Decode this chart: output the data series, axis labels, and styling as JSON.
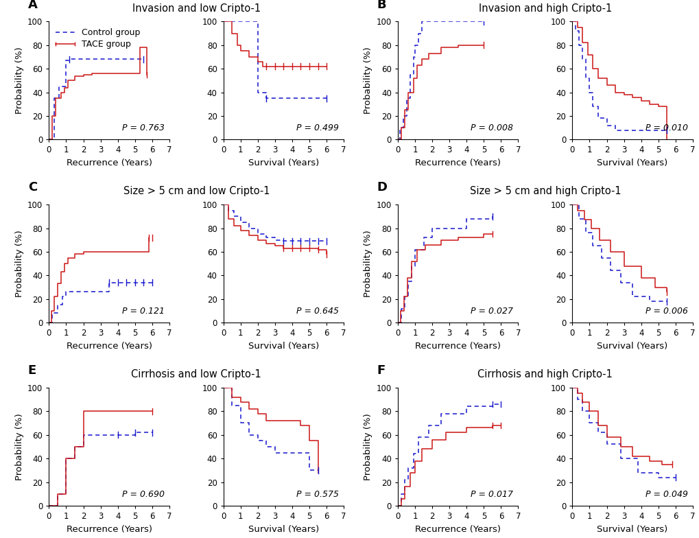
{
  "panels": [
    {
      "label": "A",
      "title": "Invasion and low Cripto-1",
      "show_legend": true,
      "subplots": [
        {
          "xlabel": "Recurrence (Years)",
          "pvalue": "P = 0.763",
          "xlim": [
            0,
            7
          ],
          "ylim": [
            0,
            100
          ],
          "control": {
            "x": [
              0,
              0.3,
              0.6,
              1.0,
              1.2,
              5.5
            ],
            "y": [
              0,
              35,
              45,
              67,
              68,
              68
            ]
          },
          "tace": {
            "x": [
              0,
              0.2,
              0.4,
              0.7,
              0.9,
              1.1,
              1.5,
              2.0,
              2.5,
              5.3,
              5.7
            ],
            "y": [
              0,
              20,
              35,
              40,
              44,
              50,
              54,
              55,
              56,
              78,
              55
            ]
          },
          "ctrl_censor": [
            1.2,
            5.5
          ],
          "tace_censor": [
            5.7
          ]
        },
        {
          "xlabel": "Survival (Years)",
          "pvalue": "P = 0.499",
          "xlim": [
            0,
            7
          ],
          "ylim": [
            0,
            100
          ],
          "control": {
            "x": [
              0,
              1.8,
              2.0,
              2.5,
              6.0
            ],
            "y": [
              100,
              100,
              40,
              35,
              35
            ]
          },
          "tace": {
            "x": [
              0,
              0.5,
              0.8,
              1.0,
              1.5,
              2.0,
              2.3,
              6.0
            ],
            "y": [
              100,
              90,
              80,
              75,
              70,
              66,
              62,
              62
            ]
          },
          "ctrl_censor": [
            2.5,
            6.0
          ],
          "tace_censor": [
            2.5,
            3.0,
            3.5,
            4.0,
            4.5,
            5.0,
            5.5,
            6.0
          ]
        }
      ]
    },
    {
      "label": "B",
      "title": "Invasion and high Cripto-1",
      "show_legend": false,
      "subplots": [
        {
          "xlabel": "Recurrence (Years)",
          "pvalue": "P = 0.008",
          "xlim": [
            0,
            7
          ],
          "ylim": [
            0,
            100
          ],
          "control": {
            "x": [
              0,
              0.1,
              0.3,
              0.5,
              0.7,
              0.9,
              1.0,
              1.2,
              1.4,
              5.0
            ],
            "y": [
              0,
              10,
              20,
              35,
              55,
              70,
              80,
              90,
              100,
              100
            ]
          },
          "tace": {
            "x": [
              0,
              0.2,
              0.4,
              0.6,
              0.9,
              1.1,
              1.4,
              1.8,
              2.5,
              3.5,
              4.3,
              5.0
            ],
            "y": [
              0,
              10,
              25,
              40,
              52,
              63,
              68,
              73,
              78,
              80,
              80,
              80
            ]
          },
          "ctrl_censor": [
            5.0
          ],
          "tace_censor": [
            5.0
          ]
        },
        {
          "xlabel": "Survival (Years)",
          "pvalue": "P = 0.010",
          "xlim": [
            0,
            7
          ],
          "ylim": [
            0,
            100
          ],
          "control": {
            "x": [
              0,
              0.2,
              0.4,
              0.6,
              0.8,
              1.0,
              1.2,
              1.5,
              2.0,
              2.5,
              5.5
            ],
            "y": [
              100,
              92,
              80,
              68,
              52,
              40,
              28,
              18,
              12,
              8,
              8
            ]
          },
          "tace": {
            "x": [
              0,
              0.3,
              0.6,
              0.9,
              1.2,
              1.5,
              2.0,
              2.5,
              3.0,
              3.5,
              4.0,
              4.5,
              5.0,
              5.5
            ],
            "y": [
              100,
              95,
              82,
              72,
              60,
              52,
              46,
              40,
              38,
              36,
              33,
              30,
              28,
              0
            ]
          },
          "ctrl_censor": [
            5.5
          ],
          "tace_censor": []
        }
      ]
    },
    {
      "label": "C",
      "title": "Size > 5 cm and low Cripto-1",
      "show_legend": false,
      "subplots": [
        {
          "xlabel": "Recurrence (Years)",
          "pvalue": "P = 0.121",
          "xlim": [
            0,
            7
          ],
          "ylim": [
            0,
            100
          ],
          "control": {
            "x": [
              0,
              0.2,
              0.5,
              0.8,
              1.0,
              3.0,
              3.5,
              6.0
            ],
            "y": [
              0,
              8,
              15,
              22,
              26,
              26,
              34,
              34
            ]
          },
          "tace": {
            "x": [
              0,
              0.15,
              0.3,
              0.5,
              0.7,
              0.9,
              1.1,
              1.5,
              2.0,
              5.4,
              5.8
            ],
            "y": [
              0,
              10,
              22,
              33,
              43,
              50,
              55,
              58,
              60,
              60,
              72
            ]
          },
          "ctrl_censor": [
            3.5,
            4.0,
            4.5,
            5.0,
            5.5,
            6.0
          ],
          "tace_censor": [
            5.8,
            6.0
          ]
        },
        {
          "xlabel": "Survival (Years)",
          "pvalue": "P = 0.645",
          "xlim": [
            0,
            7
          ],
          "ylim": [
            0,
            100
          ],
          "control": {
            "x": [
              0,
              0.3,
              0.6,
              1.0,
              1.5,
              2.0,
              2.5,
              3.0,
              3.5,
              5.5,
              6.0
            ],
            "y": [
              100,
              95,
              90,
              85,
              80,
              75,
              72,
              70,
              69,
              69,
              69
            ]
          },
          "tace": {
            "x": [
              0,
              0.3,
              0.6,
              1.0,
              1.5,
              2.0,
              2.5,
              3.0,
              3.5,
              5.5,
              6.0
            ],
            "y": [
              100,
              88,
              82,
              78,
              74,
              70,
              67,
              65,
              63,
              62,
              58
            ]
          },
          "ctrl_censor": [
            3.5,
            4.0,
            4.5,
            5.0,
            5.5,
            6.0
          ],
          "tace_censor": [
            3.5,
            4.0,
            4.5,
            5.0,
            5.5,
            6.0
          ]
        }
      ]
    },
    {
      "label": "D",
      "title": "Size > 5 cm and high Cripto-1",
      "show_legend": false,
      "subplots": [
        {
          "xlabel": "Recurrence (Years)",
          "pvalue": "P = 0.027",
          "xlim": [
            0,
            7
          ],
          "ylim": [
            0,
            100
          ],
          "control": {
            "x": [
              0,
              0.2,
              0.4,
              0.6,
              0.8,
              1.0,
              1.5,
              2.0,
              4.0,
              5.5
            ],
            "y": [
              0,
              12,
              22,
              35,
              48,
              62,
              72,
              80,
              88,
              90
            ]
          },
          "tace": {
            "x": [
              0,
              0.15,
              0.35,
              0.55,
              0.8,
              1.1,
              1.6,
              2.5,
              3.5,
              5.0,
              5.5
            ],
            "y": [
              0,
              10,
              22,
              38,
              52,
              62,
              66,
              70,
              72,
              75,
              75
            ]
          },
          "ctrl_censor": [
            5.5
          ],
          "tace_censor": [
            5.5
          ]
        },
        {
          "xlabel": "Survival (Years)",
          "pvalue": "P = 0.006",
          "xlim": [
            0,
            7
          ],
          "ylim": [
            0,
            100
          ],
          "control": {
            "x": [
              0,
              0.4,
              0.8,
              1.2,
              1.7,
              2.2,
              2.8,
              3.5,
              4.5,
              5.5
            ],
            "y": [
              100,
              88,
              76,
              65,
              55,
              44,
              34,
              22,
              18,
              18
            ]
          },
          "tace": {
            "x": [
              0,
              0.3,
              0.7,
              1.1,
              1.6,
              2.2,
              3.0,
              4.0,
              4.8,
              5.5
            ],
            "y": [
              100,
              95,
              87,
              80,
              70,
              60,
              48,
              38,
              30,
              26
            ]
          },
          "ctrl_censor": [
            5.5
          ],
          "tace_censor": [
            5.5
          ]
        }
      ]
    },
    {
      "label": "E",
      "title": "Cirrhosis and low Cripto-1",
      "show_legend": false,
      "subplots": [
        {
          "xlabel": "Recurrence (Years)",
          "pvalue": "P = 0.690",
          "xlim": [
            0,
            7
          ],
          "ylim": [
            0,
            100
          ],
          "control": {
            "x": [
              0,
              0.5,
              1.0,
              1.5,
              2.0,
              4.0,
              5.0,
              6.0
            ],
            "y": [
              0,
              10,
              40,
              50,
              60,
              60,
              62,
              62
            ]
          },
          "tace": {
            "x": [
              0,
              0.5,
              1.0,
              1.5,
              2.0,
              6.0
            ],
            "y": [
              0,
              10,
              40,
              50,
              80,
              80
            ]
          },
          "ctrl_censor": [
            4.0,
            5.0,
            6.0
          ],
          "tace_censor": [
            6.0
          ]
        },
        {
          "xlabel": "Survival (Years)",
          "pvalue": "P = 0.575",
          "xlim": [
            0,
            7
          ],
          "ylim": [
            0,
            100
          ],
          "control": {
            "x": [
              0,
              0.5,
              1.0,
              1.5,
              2.0,
              2.5,
              3.0,
              5.0,
              5.5
            ],
            "y": [
              100,
              85,
              70,
              60,
              55,
              50,
              45,
              30,
              30
            ]
          },
          "tace": {
            "x": [
              0,
              0.5,
              1.0,
              1.5,
              2.0,
              2.5,
              4.5,
              5.0,
              5.5
            ],
            "y": [
              100,
              92,
              88,
              82,
              78,
              72,
              68,
              55,
              28
            ]
          },
          "ctrl_censor": [
            5.5
          ],
          "tace_censor": []
        }
      ]
    },
    {
      "label": "F",
      "title": "Cirrhosis and high Cripto-1",
      "show_legend": false,
      "subplots": [
        {
          "xlabel": "Recurrence (Years)",
          "pvalue": "P = 0.017",
          "xlim": [
            0,
            7
          ],
          "ylim": [
            0,
            100
          ],
          "control": {
            "x": [
              0,
              0.2,
              0.4,
              0.6,
              0.9,
              1.2,
              1.8,
              2.5,
              4.0,
              5.5,
              6.0
            ],
            "y": [
              0,
              10,
              22,
              32,
              44,
              58,
              68,
              78,
              84,
              86,
              86
            ]
          },
          "tace": {
            "x": [
              0,
              0.2,
              0.4,
              0.7,
              1.0,
              1.4,
              2.0,
              2.8,
              4.0,
              5.5,
              6.0
            ],
            "y": [
              0,
              6,
              16,
              28,
              38,
              48,
              56,
              62,
              66,
              68,
              68
            ]
          },
          "ctrl_censor": [
            5.5,
            6.0
          ],
          "tace_censor": [
            5.5,
            6.0
          ]
        },
        {
          "xlabel": "Survival (Years)",
          "pvalue": "P = 0.049",
          "xlim": [
            0,
            7
          ],
          "ylim": [
            0,
            100
          ],
          "control": {
            "x": [
              0,
              0.3,
              0.6,
              1.0,
              1.5,
              2.0,
              2.8,
              3.8,
              5.0,
              6.0
            ],
            "y": [
              100,
              90,
              80,
              70,
              62,
              52,
              40,
              28,
              24,
              24
            ]
          },
          "tace": {
            "x": [
              0,
              0.3,
              0.6,
              1.0,
              1.5,
              2.0,
              2.8,
              3.5,
              4.5,
              5.2,
              5.8
            ],
            "y": [
              100,
              95,
              88,
              80,
              68,
              58,
              50,
              42,
              38,
              35,
              35
            ]
          },
          "ctrl_censor": [
            6.0
          ],
          "tace_censor": [
            5.8
          ]
        }
      ]
    }
  ],
  "control_color": "#1515CC",
  "tace_color": "#CC1515",
  "label_fontsize": 13,
  "title_fontsize": 10.5,
  "tick_fontsize": 8.5,
  "axis_label_fontsize": 9.5,
  "pvalue_fontsize": 9,
  "legend_fontsize": 9
}
